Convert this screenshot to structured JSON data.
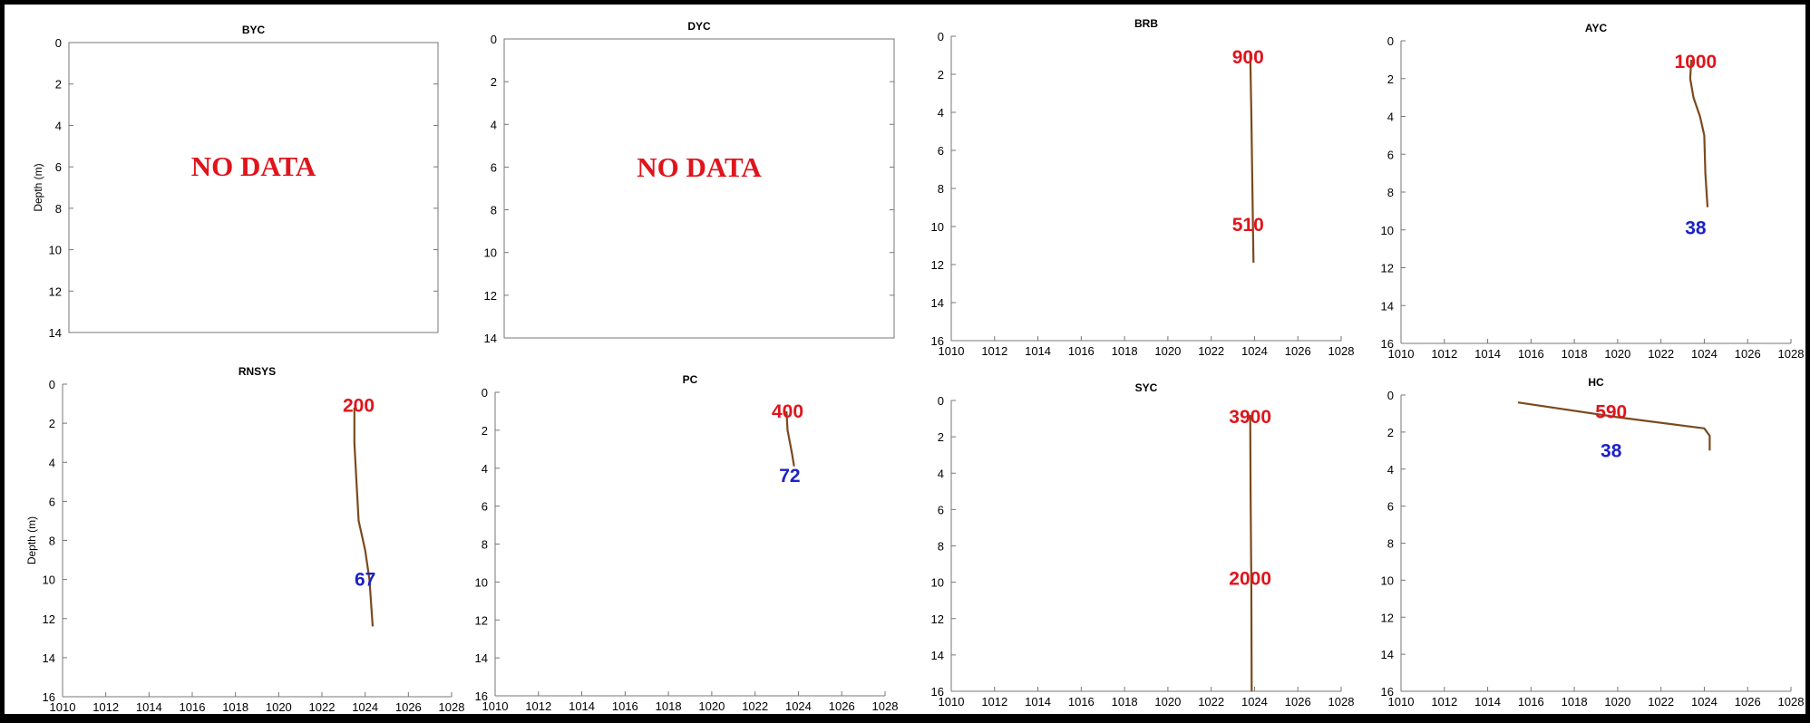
{
  "chart_data": [
    {
      "type": "line",
      "title": "BYC",
      "ylabel": "Depth (m)",
      "ylim": [
        0,
        14
      ],
      "ytick_labels": [
        "0",
        "2",
        "4",
        "6",
        "8",
        "10",
        "12",
        "14"
      ],
      "xtick_labels": [],
      "series": [],
      "overlay_text": "NO DATA",
      "annotations": []
    },
    {
      "type": "line",
      "title": "DYC",
      "ylabel": "",
      "ylim": [
        0,
        14
      ],
      "ytick_labels": [
        "0",
        "2",
        "4",
        "6",
        "8",
        "10",
        "12",
        "14"
      ],
      "xtick_labels": [],
      "series": [],
      "overlay_text": "NO DATA",
      "annotations": []
    },
    {
      "type": "line",
      "title": "BRB",
      "ylabel": "",
      "xlim": [
        1010,
        1028
      ],
      "ylim": [
        0,
        16
      ],
      "xtick_labels": [
        "1010",
        "1012",
        "1014",
        "1016",
        "1018",
        "1020",
        "1022",
        "1024",
        "1026",
        "1028"
      ],
      "ytick_labels": [
        "0",
        "2",
        "4",
        "6",
        "8",
        "10",
        "12",
        "14",
        "16"
      ],
      "series": [
        {
          "x": [
            1023.8,
            1023.85,
            1023.9,
            1023.95
          ],
          "y": [
            0.8,
            4,
            8,
            11.9
          ],
          "color": "#7a4a1e"
        }
      ],
      "annotations": [
        {
          "text": "900",
          "x": 1023.7,
          "y": 1.1,
          "color": "#e0141c"
        },
        {
          "text": "510",
          "x": 1023.7,
          "y": 9.9,
          "color": "#e0141c"
        }
      ]
    },
    {
      "type": "line",
      "title": "AYC",
      "ylabel": "",
      "xlim": [
        1010,
        1028
      ],
      "ylim": [
        0,
        16
      ],
      "xtick_labels": [
        "1010",
        "1012",
        "1014",
        "1016",
        "1018",
        "1020",
        "1022",
        "1024",
        "1026",
        "1028"
      ],
      "ytick_labels": [
        "0",
        "2",
        "4",
        "6",
        "8",
        "10",
        "12",
        "14",
        "16"
      ],
      "series": [
        {
          "x": [
            1023.4,
            1023.35,
            1023.5,
            1023.8,
            1024.0,
            1024.05,
            1024.15
          ],
          "y": [
            1.0,
            2.0,
            3.0,
            4.0,
            5.0,
            7.0,
            8.8
          ],
          "color": "#7a4a1e"
        }
      ],
      "annotations": [
        {
          "text": "1000",
          "x": 1023.6,
          "y": 1.1,
          "color": "#e0141c"
        },
        {
          "text": "38",
          "x": 1023.6,
          "y": 9.9,
          "color": "#1c22c8"
        }
      ]
    },
    {
      "type": "line",
      "title": "RNSYS",
      "ylabel": "Depth (m)",
      "xlim": [
        1010,
        1028
      ],
      "ylim": [
        0,
        16
      ],
      "xtick_labels": [
        "1010",
        "1012",
        "1014",
        "1016",
        "1018",
        "1020",
        "1022",
        "1024",
        "1026",
        "1028"
      ],
      "ytick_labels": [
        "0",
        "2",
        "4",
        "6",
        "8",
        "10",
        "12",
        "14",
        "16"
      ],
      "series": [
        {
          "x": [
            1023.5,
            1023.5,
            1023.6,
            1023.7,
            1024.0,
            1024.2,
            1024.35
          ],
          "y": [
            1.2,
            3.0,
            5.0,
            7.0,
            8.5,
            10.0,
            12.4
          ],
          "color": "#7a4a1e"
        }
      ],
      "annotations": [
        {
          "text": "200",
          "x": 1023.7,
          "y": 1.1,
          "color": "#e0141c"
        },
        {
          "text": "67",
          "x": 1024.0,
          "y": 10.0,
          "color": "#1c22c8"
        }
      ]
    },
    {
      "type": "line",
      "title": "PC",
      "ylabel": "",
      "xlim": [
        1010,
        1028
      ],
      "ylim": [
        0,
        16
      ],
      "xtick_labels": [
        "1010",
        "1012",
        "1014",
        "1016",
        "1018",
        "1020",
        "1022",
        "1024",
        "1026",
        "1028"
      ],
      "ytick_labels": [
        "0",
        "2",
        "4",
        "6",
        "8",
        "10",
        "12",
        "14",
        "16"
      ],
      "series": [
        {
          "x": [
            1023.45,
            1023.5,
            1023.7,
            1023.8
          ],
          "y": [
            1.0,
            2.0,
            3.2,
            3.9
          ],
          "color": "#7a4a1e"
        }
      ],
      "annotations": [
        {
          "text": "400",
          "x": 1023.5,
          "y": 1.0,
          "color": "#e0141c"
        },
        {
          "text": "72",
          "x": 1023.6,
          "y": 4.4,
          "color": "#1c22c8"
        }
      ]
    },
    {
      "type": "line",
      "title": "SYC",
      "ylabel": "",
      "xlim": [
        1010,
        1028
      ],
      "ylim": [
        0,
        16
      ],
      "xtick_labels": [
        "1010",
        "1012",
        "1014",
        "1016",
        "1018",
        "1020",
        "1022",
        "1024",
        "1026",
        "1028"
      ],
      "ytick_labels": [
        "0",
        "2",
        "4",
        "6",
        "8",
        "10",
        "12",
        "14",
        "16"
      ],
      "series": [
        {
          "x": [
            1023.8,
            1023.82,
            1023.85,
            1023.87
          ],
          "y": [
            0.8,
            5.0,
            10.0,
            16.0
          ],
          "color": "#7a4a1e"
        }
      ],
      "annotations": [
        {
          "text": "3900",
          "x": 1023.8,
          "y": 0.9,
          "color": "#e0141c"
        },
        {
          "text": "2000",
          "x": 1023.8,
          "y": 9.8,
          "color": "#e0141c"
        }
      ]
    },
    {
      "type": "line",
      "title": "HC",
      "ylabel": "",
      "xlim": [
        1010,
        1028
      ],
      "ylim": [
        0,
        16
      ],
      "xtick_labels": [
        "1010",
        "1012",
        "1014",
        "1016",
        "1018",
        "1020",
        "1022",
        "1024",
        "1026",
        "1028"
      ],
      "ytick_labels": [
        "0",
        "2",
        "4",
        "6",
        "8",
        "10",
        "12",
        "14",
        "16"
      ],
      "series": [
        {
          "x": [
            1015.4,
            1020.0,
            1024.0,
            1024.25,
            1024.25
          ],
          "y": [
            0.4,
            1.2,
            1.8,
            2.2,
            3.0
          ],
          "color": "#7a4a1e"
        }
      ],
      "annotations": [
        {
          "text": "590",
          "x": 1019.7,
          "y": 0.9,
          "color": "#e0141c"
        },
        {
          "text": "38",
          "x": 1019.7,
          "y": 3.0,
          "color": "#1c22c8"
        }
      ]
    }
  ]
}
